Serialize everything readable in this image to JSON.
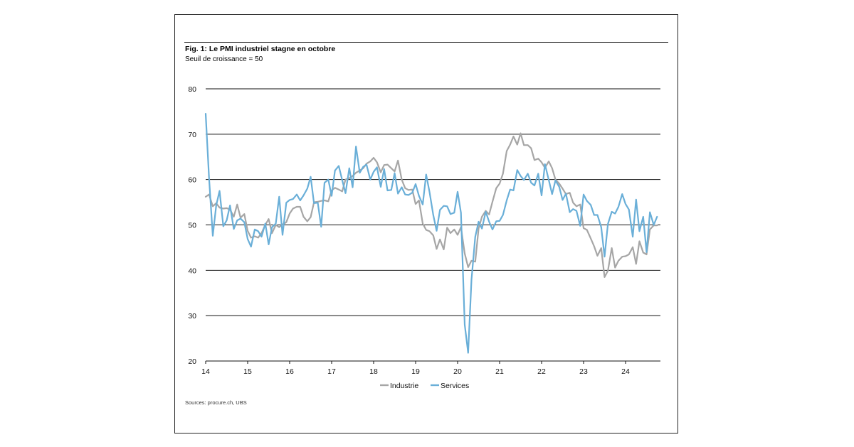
{
  "figure": {
    "title": "Fig. 1: Le PMI industriel stagne en octobre",
    "subtitle": "Seuil de croissance = 50",
    "source": "Sources: procure.ch, UBS"
  },
  "chart_data": {
    "type": "line",
    "title": "Fig. 1: Le PMI industriel stagne en octobre",
    "subtitle": "Seuil de croissance = 50",
    "xlabel": "",
    "ylabel": "",
    "xlim": [
      2014.0,
      2024.83
    ],
    "ylim": [
      20,
      80
    ],
    "yticks": [
      "20",
      "30",
      "40",
      "50",
      "60",
      "70",
      "80"
    ],
    "xticks": [
      "14",
      "15",
      "16",
      "17",
      "18",
      "19",
      "20",
      "21",
      "22",
      "23",
      "24"
    ],
    "grid": "horizontal",
    "legend": "bottom-center",
    "series": [
      {
        "name": "Industrie",
        "color": "#a6a6a6",
        "points": [
          [
            2014.0,
            56.2
          ],
          [
            2014.08,
            56.7
          ],
          [
            2014.17,
            54.1
          ],
          [
            2014.25,
            54.8
          ],
          [
            2014.33,
            53.8
          ],
          [
            2014.42,
            53.6
          ],
          [
            2014.5,
            53.7
          ],
          [
            2014.58,
            53.4
          ],
          [
            2014.67,
            51.8
          ],
          [
            2014.75,
            54.5
          ],
          [
            2014.83,
            51.6
          ],
          [
            2014.92,
            52.4
          ],
          [
            2015.0,
            48.7
          ],
          [
            2015.08,
            47.2
          ],
          [
            2015.17,
            47.5
          ],
          [
            2015.25,
            47.2
          ],
          [
            2015.33,
            48.2
          ],
          [
            2015.42,
            50.0
          ],
          [
            2015.5,
            51.3
          ],
          [
            2015.58,
            48.2
          ],
          [
            2015.67,
            50.0
          ],
          [
            2015.75,
            49.5
          ],
          [
            2015.83,
            50.1
          ],
          [
            2015.92,
            50.6
          ],
          [
            2016.0,
            52.5
          ],
          [
            2016.08,
            53.6
          ],
          [
            2016.17,
            54.0
          ],
          [
            2016.25,
            54.0
          ],
          [
            2016.33,
            51.8
          ],
          [
            2016.42,
            50.8
          ],
          [
            2016.5,
            51.7
          ],
          [
            2016.58,
            55.0
          ],
          [
            2016.67,
            55.1
          ],
          [
            2016.75,
            55.3
          ],
          [
            2016.83,
            55.4
          ],
          [
            2016.92,
            55.2
          ],
          [
            2017.0,
            57.6
          ],
          [
            2017.08,
            58.2
          ],
          [
            2017.17,
            57.8
          ],
          [
            2017.25,
            57.4
          ],
          [
            2017.33,
            60.0
          ],
          [
            2017.42,
            60.3
          ],
          [
            2017.5,
            60.8
          ],
          [
            2017.58,
            61.5
          ],
          [
            2017.67,
            62.0
          ],
          [
            2017.75,
            62.5
          ],
          [
            2017.83,
            63.5
          ],
          [
            2017.92,
            64.0
          ],
          [
            2018.0,
            64.8
          ],
          [
            2018.08,
            63.8
          ],
          [
            2018.17,
            61.6
          ],
          [
            2018.25,
            63.2
          ],
          [
            2018.33,
            63.3
          ],
          [
            2018.42,
            62.5
          ],
          [
            2018.5,
            61.8
          ],
          [
            2018.58,
            64.2
          ],
          [
            2018.67,
            60.0
          ],
          [
            2018.75,
            58.1
          ],
          [
            2018.83,
            57.7
          ],
          [
            2018.92,
            57.8
          ],
          [
            2019.0,
            54.6
          ],
          [
            2019.08,
            55.4
          ],
          [
            2019.17,
            50.3
          ],
          [
            2019.25,
            48.9
          ],
          [
            2019.33,
            48.6
          ],
          [
            2019.42,
            47.7
          ],
          [
            2019.5,
            44.7
          ],
          [
            2019.58,
            46.8
          ],
          [
            2019.67,
            44.6
          ],
          [
            2019.75,
            49.4
          ],
          [
            2019.83,
            48.2
          ],
          [
            2019.92,
            49.0
          ],
          [
            2020.0,
            47.8
          ],
          [
            2020.08,
            49.5
          ],
          [
            2020.17,
            43.7
          ],
          [
            2020.25,
            40.7
          ],
          [
            2020.33,
            42.1
          ],
          [
            2020.42,
            41.9
          ],
          [
            2020.5,
            49.2
          ],
          [
            2020.58,
            51.8
          ],
          [
            2020.67,
            53.1
          ],
          [
            2020.75,
            52.3
          ],
          [
            2020.83,
            55.1
          ],
          [
            2020.92,
            58.1
          ],
          [
            2021.0,
            59.1
          ],
          [
            2021.08,
            61.3
          ],
          [
            2021.17,
            66.3
          ],
          [
            2021.25,
            67.7
          ],
          [
            2021.33,
            69.5
          ],
          [
            2021.42,
            67.7
          ],
          [
            2021.5,
            70.2
          ],
          [
            2021.58,
            67.6
          ],
          [
            2021.67,
            67.6
          ],
          [
            2021.75,
            66.9
          ],
          [
            2021.83,
            64.3
          ],
          [
            2021.92,
            64.6
          ],
          [
            2022.0,
            63.8
          ],
          [
            2022.08,
            62.6
          ],
          [
            2022.17,
            64.0
          ],
          [
            2022.25,
            62.5
          ],
          [
            2022.33,
            60.0
          ],
          [
            2022.42,
            59.1
          ],
          [
            2022.5,
            58.0
          ],
          [
            2022.58,
            56.8
          ],
          [
            2022.67,
            57.1
          ],
          [
            2022.75,
            54.9
          ],
          [
            2022.83,
            54.1
          ],
          [
            2022.92,
            54.5
          ],
          [
            2023.0,
            49.3
          ],
          [
            2023.08,
            48.9
          ],
          [
            2023.17,
            47.0
          ],
          [
            2023.25,
            45.3
          ],
          [
            2023.33,
            43.2
          ],
          [
            2023.42,
            44.9
          ],
          [
            2023.5,
            38.5
          ],
          [
            2023.58,
            39.9
          ],
          [
            2023.67,
            44.9
          ],
          [
            2023.75,
            40.6
          ],
          [
            2023.83,
            42.1
          ],
          [
            2023.92,
            43.0
          ],
          [
            2024.0,
            43.1
          ],
          [
            2024.08,
            43.5
          ],
          [
            2024.17,
            45.1
          ],
          [
            2024.25,
            41.4
          ],
          [
            2024.33,
            46.4
          ],
          [
            2024.42,
            43.9
          ],
          [
            2024.5,
            43.5
          ],
          [
            2024.58,
            49.0
          ],
          [
            2024.67,
            49.9
          ],
          [
            2024.75,
            49.9
          ]
        ]
      },
      {
        "name": "Services",
        "color": "#6aafd8",
        "points": [
          [
            2014.0,
            74.5
          ],
          [
            2014.08,
            60.5
          ],
          [
            2014.17,
            47.6
          ],
          [
            2014.25,
            54.3
          ],
          [
            2014.33,
            57.5
          ],
          [
            2014.42,
            49.7
          ],
          [
            2014.5,
            51.0
          ],
          [
            2014.58,
            54.3
          ],
          [
            2014.67,
            49.1
          ],
          [
            2014.75,
            51.0
          ],
          [
            2014.83,
            51.4
          ],
          [
            2014.92,
            50.6
          ],
          [
            2015.0,
            46.9
          ],
          [
            2015.08,
            45.2
          ],
          [
            2015.17,
            49.0
          ],
          [
            2015.25,
            48.6
          ],
          [
            2015.33,
            47.4
          ],
          [
            2015.42,
            50.3
          ],
          [
            2015.5,
            45.7
          ],
          [
            2015.58,
            49.5
          ],
          [
            2015.67,
            50.3
          ],
          [
            2015.75,
            56.2
          ],
          [
            2015.83,
            47.8
          ],
          [
            2015.92,
            54.9
          ],
          [
            2016.0,
            55.5
          ],
          [
            2016.08,
            55.7
          ],
          [
            2016.17,
            56.7
          ],
          [
            2016.25,
            55.4
          ],
          [
            2016.33,
            56.5
          ],
          [
            2016.42,
            58.0
          ],
          [
            2016.5,
            60.6
          ],
          [
            2016.58,
            54.8
          ],
          [
            2016.67,
            54.9
          ],
          [
            2016.75,
            49.6
          ],
          [
            2016.83,
            59.3
          ],
          [
            2016.92,
            60.0
          ],
          [
            2017.0,
            56.4
          ],
          [
            2017.08,
            62.0
          ],
          [
            2017.17,
            63.0
          ],
          [
            2017.25,
            59.9
          ],
          [
            2017.33,
            57.0
          ],
          [
            2017.42,
            62.5
          ],
          [
            2017.5,
            58.3
          ],
          [
            2017.58,
            67.3
          ],
          [
            2017.67,
            61.5
          ],
          [
            2017.75,
            62.8
          ],
          [
            2017.83,
            63.3
          ],
          [
            2017.92,
            60.0
          ],
          [
            2018.0,
            61.7
          ],
          [
            2018.08,
            62.7
          ],
          [
            2018.17,
            58.4
          ],
          [
            2018.25,
            62.3
          ],
          [
            2018.33,
            57.6
          ],
          [
            2018.42,
            57.7
          ],
          [
            2018.5,
            61.4
          ],
          [
            2018.58,
            56.9
          ],
          [
            2018.67,
            58.3
          ],
          [
            2018.75,
            56.7
          ],
          [
            2018.83,
            56.6
          ],
          [
            2018.92,
            57.1
          ],
          [
            2019.0,
            59.0
          ],
          [
            2019.08,
            56.4
          ],
          [
            2019.17,
            54.5
          ],
          [
            2019.25,
            61.1
          ],
          [
            2019.33,
            57.3
          ],
          [
            2019.42,
            52.2
          ],
          [
            2019.5,
            48.7
          ],
          [
            2019.58,
            53.3
          ],
          [
            2019.67,
            54.2
          ],
          [
            2019.75,
            54.1
          ],
          [
            2019.83,
            52.4
          ],
          [
            2019.92,
            52.7
          ],
          [
            2020.0,
            57.3
          ],
          [
            2020.08,
            52.7
          ],
          [
            2020.17,
            28.0
          ],
          [
            2020.25,
            21.8
          ],
          [
            2020.33,
            37.9
          ],
          [
            2020.42,
            47.4
          ],
          [
            2020.5,
            50.7
          ],
          [
            2020.58,
            49.2
          ],
          [
            2020.67,
            52.9
          ],
          [
            2020.75,
            50.7
          ],
          [
            2020.83,
            49.0
          ],
          [
            2020.92,
            50.8
          ],
          [
            2021.0,
            50.9
          ],
          [
            2021.08,
            52.2
          ],
          [
            2021.17,
            55.4
          ],
          [
            2021.25,
            57.8
          ],
          [
            2021.33,
            57.6
          ],
          [
            2021.42,
            62.1
          ],
          [
            2021.5,
            60.8
          ],
          [
            2021.58,
            59.9
          ],
          [
            2021.67,
            61.3
          ],
          [
            2021.75,
            59.3
          ],
          [
            2021.83,
            58.7
          ],
          [
            2021.92,
            61.3
          ],
          [
            2022.0,
            56.5
          ],
          [
            2022.08,
            63.4
          ],
          [
            2022.17,
            59.9
          ],
          [
            2022.25,
            56.8
          ],
          [
            2022.33,
            59.8
          ],
          [
            2022.42,
            58.4
          ],
          [
            2022.5,
            55.5
          ],
          [
            2022.58,
            56.9
          ],
          [
            2022.67,
            52.8
          ],
          [
            2022.75,
            53.5
          ],
          [
            2022.83,
            53.1
          ],
          [
            2022.92,
            49.8
          ],
          [
            2023.0,
            56.7
          ],
          [
            2023.08,
            55.3
          ],
          [
            2023.17,
            54.4
          ],
          [
            2023.25,
            52.2
          ],
          [
            2023.33,
            52.2
          ],
          [
            2023.42,
            49.5
          ],
          [
            2023.5,
            43.0
          ],
          [
            2023.58,
            50.2
          ],
          [
            2023.67,
            52.9
          ],
          [
            2023.75,
            52.5
          ],
          [
            2023.83,
            54.0
          ],
          [
            2023.92,
            56.8
          ],
          [
            2024.0,
            54.6
          ],
          [
            2024.08,
            53.4
          ],
          [
            2024.17,
            47.4
          ],
          [
            2024.25,
            55.6
          ],
          [
            2024.33,
            48.6
          ],
          [
            2024.42,
            51.8
          ],
          [
            2024.5,
            44.0
          ],
          [
            2024.58,
            52.8
          ],
          [
            2024.67,
            50.0
          ],
          [
            2024.75,
            51.8
          ]
        ]
      }
    ]
  }
}
